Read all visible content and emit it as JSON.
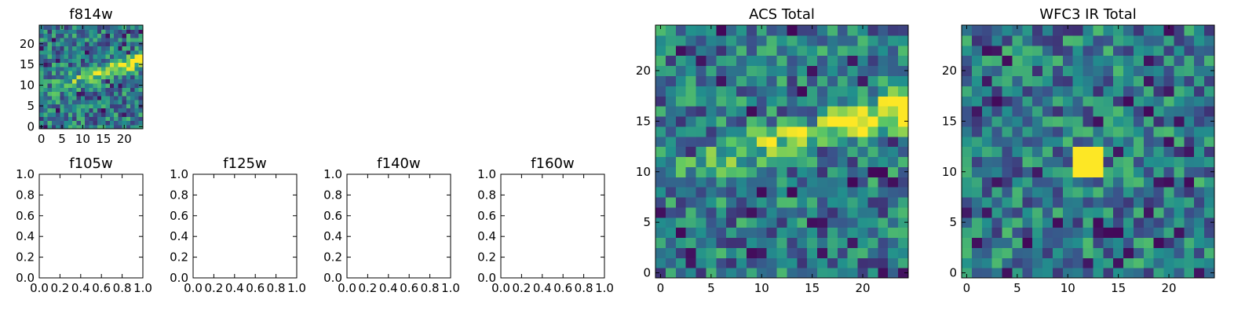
{
  "figure": {
    "background": "#ffffff",
    "colormap": "viridis",
    "colormap_stops": [
      "#440154",
      "#3b528b",
      "#21908d",
      "#5dc863",
      "#fde725"
    ]
  },
  "chart_data": [
    {
      "id": "f814w",
      "type": "heatmap",
      "title": "f814w",
      "grid_size": [
        25,
        25
      ],
      "xlim": [
        -0.5,
        24.5
      ],
      "ylim": [
        -0.5,
        24.5
      ],
      "x_ticks": [
        0,
        5,
        10,
        15,
        20
      ],
      "x_tick_labels": [
        "0",
        "5",
        "10",
        "15",
        "20"
      ],
      "y_ticks": [
        0,
        5,
        10,
        15,
        20
      ],
      "y_tick_labels": [
        "0",
        "5",
        "10",
        "15",
        "20"
      ],
      "origin": "lower",
      "color_range": [
        0,
        1
      ],
      "grid": false,
      "features": [
        {
          "kind": "ridge",
          "description": "bright diagonal streak",
          "x_range": [
            0,
            24
          ],
          "y_start": 9,
          "y_end": 16,
          "peak_value": 1.0,
          "peak_x": 24,
          "peak_y": 16
        }
      ]
    },
    {
      "id": "f105w",
      "type": "heatmap",
      "title": "f105w",
      "empty": true,
      "xlim": [
        0.0,
        1.0
      ],
      "ylim": [
        0.0,
        1.0
      ],
      "x_ticks": [
        0.0,
        0.2,
        0.4,
        0.6,
        0.8,
        1.0
      ],
      "x_tick_labels": [
        "0.0",
        "0.2",
        "0.4",
        "0.6",
        "0.8",
        "1.0"
      ],
      "y_ticks": [
        0.0,
        0.2,
        0.4,
        0.6,
        0.8,
        1.0
      ],
      "y_tick_labels": [
        "0.0",
        "0.2",
        "0.4",
        "0.6",
        "0.8",
        "1.0"
      ],
      "grid": false
    },
    {
      "id": "f125w",
      "type": "heatmap",
      "title": "f125w",
      "empty": true,
      "xlim": [
        0.0,
        1.0
      ],
      "ylim": [
        0.0,
        1.0
      ],
      "x_ticks": [
        0.0,
        0.2,
        0.4,
        0.6,
        0.8,
        1.0
      ],
      "x_tick_labels": [
        "0.0",
        "0.2",
        "0.4",
        "0.6",
        "0.8",
        "1.0"
      ],
      "y_ticks": [
        0.0,
        0.2,
        0.4,
        0.6,
        0.8,
        1.0
      ],
      "y_tick_labels": [
        "0.0",
        "0.2",
        "0.4",
        "0.6",
        "0.8",
        "1.0"
      ],
      "grid": false
    },
    {
      "id": "f140w",
      "type": "heatmap",
      "title": "f140w",
      "empty": true,
      "xlim": [
        0.0,
        1.0
      ],
      "ylim": [
        0.0,
        1.0
      ],
      "x_ticks": [
        0.0,
        0.2,
        0.4,
        0.6,
        0.8,
        1.0
      ],
      "x_tick_labels": [
        "0.0",
        "0.2",
        "0.4",
        "0.6",
        "0.8",
        "1.0"
      ],
      "y_ticks": [
        0.0,
        0.2,
        0.4,
        0.6,
        0.8,
        1.0
      ],
      "y_tick_labels": [
        "0.0",
        "0.2",
        "0.4",
        "0.6",
        "0.8",
        "1.0"
      ],
      "grid": false
    },
    {
      "id": "f160w",
      "type": "heatmap",
      "title": "f160w",
      "empty": true,
      "xlim": [
        0.0,
        1.0
      ],
      "ylim": [
        0.0,
        1.0
      ],
      "x_ticks": [
        0.0,
        0.2,
        0.4,
        0.6,
        0.8,
        1.0
      ],
      "x_tick_labels": [
        "0.0",
        "0.2",
        "0.4",
        "0.6",
        "0.8",
        "1.0"
      ],
      "y_ticks": [
        0.0,
        0.2,
        0.4,
        0.6,
        0.8,
        1.0
      ],
      "y_tick_labels": [
        "0.0",
        "0.2",
        "0.4",
        "0.6",
        "0.8",
        "1.0"
      ],
      "grid": false
    },
    {
      "id": "acs-total",
      "type": "heatmap",
      "title": "ACS Total",
      "grid_size": [
        25,
        25
      ],
      "xlim": [
        -0.5,
        24.5
      ],
      "ylim": [
        -0.5,
        24.5
      ],
      "x_ticks": [
        0,
        5,
        10,
        15,
        20
      ],
      "x_tick_labels": [
        "0",
        "5",
        "10",
        "15",
        "20"
      ],
      "y_ticks": [
        0,
        5,
        10,
        15,
        20
      ],
      "y_tick_labels": [
        "0",
        "5",
        "10",
        "15",
        "20"
      ],
      "origin": "lower",
      "color_range": [
        0,
        1
      ],
      "grid": false,
      "features": [
        {
          "kind": "ridge",
          "description": "bright diagonal streak",
          "x_range": [
            0,
            24
          ],
          "y_start": 10,
          "y_end": 16,
          "peak_value": 1.0,
          "peak_x": 23,
          "peak_y": 16
        }
      ]
    },
    {
      "id": "wfc3-ir-total",
      "type": "heatmap",
      "title": "WFC3 IR Total",
      "grid_size": [
        25,
        25
      ],
      "xlim": [
        -0.5,
        24.5
      ],
      "ylim": [
        -0.5,
        24.5
      ],
      "x_ticks": [
        0,
        5,
        10,
        15,
        20
      ],
      "x_tick_labels": [
        "0",
        "5",
        "10",
        "15",
        "20"
      ],
      "y_ticks": [
        0,
        5,
        10,
        15,
        20
      ],
      "y_tick_labels": [
        "0",
        "5",
        "10",
        "15",
        "20"
      ],
      "origin": "lower",
      "color_range": [
        0,
        1
      ],
      "grid": false,
      "features": [
        {
          "kind": "blob",
          "description": "bright compact source",
          "center": [
            12,
            11
          ],
          "radius": 1.5,
          "peak_value": 1.0
        }
      ]
    }
  ]
}
